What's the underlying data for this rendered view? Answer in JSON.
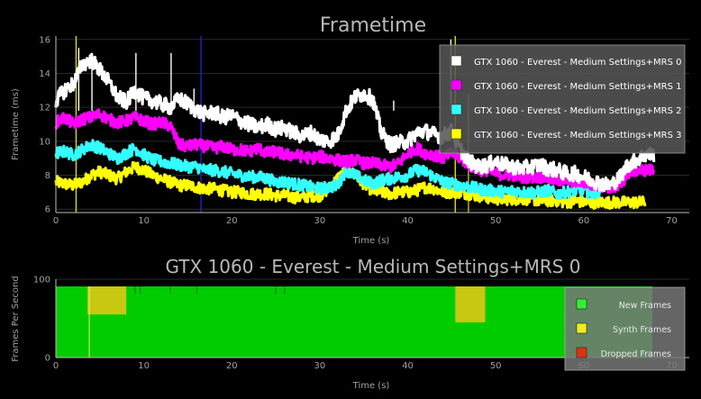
{
  "chart_data": [
    {
      "type": "line",
      "title": "Frametime",
      "xlabel": "Time (s)",
      "ylabel": "Frametime (ms)",
      "xlim": [
        0,
        72
      ],
      "ylim": [
        5.8,
        16.2
      ],
      "xticks": [
        0,
        10,
        20,
        30,
        40,
        50,
        60,
        70
      ],
      "yticks": [
        6,
        8,
        10,
        12,
        14,
        16
      ],
      "grid": true,
      "legend_position": "top-right",
      "series": [
        {
          "name": "GTX 1060 - Everest - Medium Settings+MRS 0",
          "color": "#ffffff",
          "x": [
            0,
            1,
            2,
            3,
            4,
            5,
            6,
            7,
            8,
            9,
            10,
            11,
            12,
            13,
            14,
            15,
            16,
            17,
            18,
            19,
            20,
            21,
            22,
            23,
            24,
            25,
            26,
            27,
            28,
            29,
            30,
            31,
            32,
            33,
            34,
            35,
            36,
            37,
            38,
            39,
            40,
            41,
            42,
            43,
            44,
            45,
            46,
            47,
            48,
            49,
            50,
            51,
            52,
            53,
            54,
            55,
            56,
            57,
            58,
            59,
            60,
            61,
            62,
            63,
            64,
            65,
            66,
            67,
            68
          ],
          "values": [
            12.4,
            13.0,
            13.4,
            14.5,
            14.8,
            14.2,
            13.5,
            12.6,
            12.3,
            13.0,
            12.5,
            12.4,
            12.2,
            12.0,
            12.5,
            12.2,
            11.8,
            11.6,
            11.7,
            11.4,
            11.5,
            11.2,
            11.0,
            10.8,
            11.0,
            10.7,
            10.8,
            10.5,
            10.3,
            10.5,
            10.1,
            10.0,
            10.3,
            11.8,
            12.6,
            12.8,
            12.5,
            10.5,
            9.8,
            9.9,
            10.0,
            10.5,
            10.6,
            10.4,
            10.3,
            10.6,
            9.5,
            8.8,
            8.5,
            8.6,
            8.8,
            8.6,
            8.5,
            8.4,
            8.5,
            8.6,
            8.4,
            8.3,
            8.1,
            8.1,
            7.9,
            7.7,
            7.5,
            7.4,
            7.8,
            8.6,
            8.9,
            9.2,
            9.2
          ]
        },
        {
          "name": "GTX 1060 - Everest - Medium Settings+MRS 1",
          "color": "#ff00ff",
          "x": [
            0,
            1,
            2,
            3,
            4,
            5,
            6,
            7,
            8,
            9,
            10,
            11,
            12,
            13,
            14,
            15,
            16,
            17,
            18,
            19,
            20,
            21,
            22,
            23,
            24,
            25,
            26,
            27,
            28,
            29,
            30,
            31,
            32,
            33,
            34,
            35,
            36,
            37,
            38,
            39,
            40,
            41,
            42,
            43,
            44,
            45,
            46,
            47,
            48,
            49,
            50,
            51,
            52,
            53,
            54,
            55,
            56,
            57,
            58,
            59,
            60,
            61,
            62,
            63,
            64,
            65,
            66,
            67,
            68
          ],
          "values": [
            11.1,
            11.4,
            11.0,
            11.3,
            11.4,
            11.6,
            11.3,
            11.1,
            11.2,
            11.4,
            11.2,
            11.0,
            11.1,
            10.9,
            9.8,
            9.7,
            9.8,
            9.7,
            9.6,
            9.7,
            9.5,
            9.5,
            9.4,
            9.6,
            9.3,
            9.4,
            9.2,
            9.2,
            9.1,
            9.0,
            9.1,
            9.0,
            8.9,
            8.8,
            8.9,
            8.7,
            8.7,
            8.6,
            8.5,
            8.7,
            9.3,
            9.6,
            9.3,
            9.2,
            9.0,
            9.3,
            9.0,
            8.6,
            8.3,
            8.3,
            8.1,
            8.0,
            8.0,
            7.9,
            7.9,
            7.9,
            7.8,
            7.7,
            7.7,
            7.6,
            7.6,
            7.4,
            7.4,
            7.3,
            7.2,
            8.1,
            8.3,
            8.3,
            8.3
          ]
        },
        {
          "name": "GTX 1060 - Everest - Medium Settings+MRS 2",
          "color": "#33ffff",
          "x": [
            0,
            1,
            2,
            3,
            4,
            5,
            6,
            7,
            8,
            9,
            10,
            11,
            12,
            13,
            14,
            15,
            16,
            17,
            18,
            19,
            20,
            21,
            22,
            23,
            24,
            25,
            26,
            27,
            28,
            29,
            30,
            31,
            32,
            33,
            34,
            35,
            36,
            37,
            38,
            39,
            40,
            41,
            42,
            43,
            44,
            45,
            46,
            47,
            48,
            49,
            50,
            51,
            52,
            53,
            54,
            55,
            56,
            57,
            58,
            59,
            60,
            61,
            62
          ],
          "values": [
            9.3,
            9.4,
            9.2,
            9.5,
            9.8,
            9.6,
            9.3,
            9.0,
            9.3,
            9.6,
            9.2,
            8.9,
            8.8,
            8.7,
            8.6,
            8.5,
            8.5,
            8.3,
            8.3,
            8.2,
            8.1,
            8.0,
            7.9,
            7.9,
            7.8,
            7.6,
            7.6,
            7.5,
            7.4,
            7.3,
            7.2,
            7.3,
            7.4,
            8.3,
            8.0,
            7.7,
            7.5,
            7.7,
            7.8,
            7.9,
            8.0,
            8.3,
            8.2,
            7.9,
            7.6,
            7.5,
            7.4,
            7.3,
            7.2,
            7.1,
            7.1,
            7.0,
            7.1,
            7.0,
            7.0,
            7.0,
            7.1,
            6.9,
            7.0,
            7.1,
            7.1,
            6.9,
            7.1
          ]
        },
        {
          "name": "GTX 1060 - Everest - Medium Settings+MRS 3",
          "color": "#ffff00",
          "x": [
            0,
            1,
            2,
            3,
            4,
            5,
            6,
            7,
            8,
            9,
            10,
            11,
            12,
            13,
            14,
            15,
            16,
            17,
            18,
            19,
            20,
            21,
            22,
            23,
            24,
            25,
            26,
            27,
            28,
            29,
            30,
            31,
            32,
            33,
            34,
            35,
            36,
            37,
            38,
            39,
            40,
            41,
            42,
            43,
            44,
            45,
            46,
            47,
            48,
            49,
            50,
            51,
            52,
            53,
            54,
            55,
            56,
            57,
            58,
            59,
            60,
            61,
            62,
            63,
            64,
            65,
            66,
            67
          ],
          "values": [
            7.6,
            7.5,
            7.4,
            7.6,
            8.0,
            8.2,
            8.0,
            7.8,
            8.2,
            8.5,
            8.3,
            8.0,
            7.8,
            7.6,
            7.4,
            7.4,
            7.3,
            7.2,
            7.2,
            7.1,
            7.0,
            7.0,
            6.9,
            6.9,
            6.9,
            6.8,
            6.8,
            6.7,
            6.7,
            6.8,
            6.8,
            7.2,
            7.8,
            8.3,
            8.0,
            7.5,
            7.1,
            7.0,
            6.9,
            7.0,
            7.0,
            7.1,
            7.3,
            7.2,
            7.0,
            7.0,
            7.0,
            6.9,
            6.8,
            6.7,
            6.6,
            6.6,
            6.6,
            6.6,
            6.6,
            6.5,
            6.5,
            6.5,
            6.4,
            6.5,
            6.4,
            6.4,
            6.4,
            6.4,
            6.4,
            6.4,
            6.4,
            6.4
          ]
        }
      ]
    },
    {
      "type": "area",
      "title": "GTX 1060 - Everest - Medium Settings+MRS 0",
      "xlabel": "Time (s)",
      "ylabel": "Frames Per Second",
      "xlim": [
        0,
        72
      ],
      "ylim": [
        0,
        100
      ],
      "xticks": [
        0,
        10,
        20,
        30,
        40,
        50,
        60,
        70
      ],
      "yticks": [
        0,
        100
      ],
      "legend_position": "right",
      "legend": [
        {
          "label": "New Frames",
          "color": "#33ee33"
        },
        {
          "label": "Synth Frames",
          "color": "#eeee22"
        },
        {
          "label": "Dropped Frames",
          "color": "#dd3311"
        }
      ],
      "new_frames_color": "#00cc00",
      "synth_frames_color": "#c8c812",
      "new_frames_end": 67.8,
      "synth_frames": [
        {
          "start": 3.6,
          "end": 8.0,
          "level": 55
        },
        {
          "start": 45.4,
          "end": 48.8,
          "level": 45
        }
      ]
    }
  ]
}
